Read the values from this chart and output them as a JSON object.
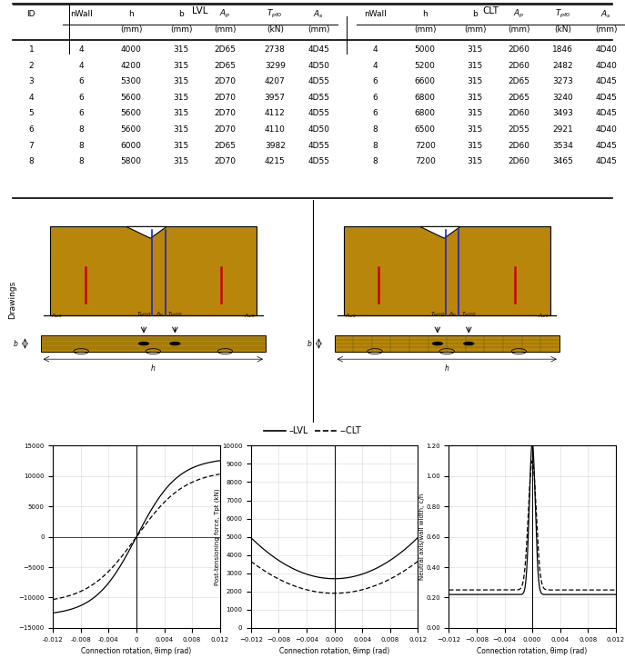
{
  "table_data": [
    [
      1,
      4,
      4000,
      315,
      "2D65",
      2738,
      "4D45",
      4,
      5000,
      315,
      "2D60",
      1846,
      "4D40"
    ],
    [
      2,
      4,
      4200,
      315,
      "2D65",
      3299,
      "4D50",
      4,
      5200,
      315,
      "2D60",
      2482,
      "4D40"
    ],
    [
      3,
      6,
      5300,
      315,
      "2D70",
      4207,
      "4D55",
      6,
      6600,
      315,
      "2D65",
      3273,
      "4D45"
    ],
    [
      4,
      6,
      5600,
      315,
      "2D70",
      3957,
      "4D55",
      6,
      6800,
      315,
      "2D65",
      3240,
      "4D45"
    ],
    [
      5,
      6,
      5600,
      315,
      "2D70",
      4112,
      "4D55",
      6,
      6800,
      315,
      "2D60",
      3493,
      "4D45"
    ],
    [
      6,
      8,
      5600,
      315,
      "2D70",
      4110,
      "4D50",
      8,
      6500,
      315,
      "2D55",
      2921,
      "4D40"
    ],
    [
      7,
      8,
      6000,
      315,
      "2D65",
      3982,
      "4D55",
      8,
      7200,
      315,
      "2D60",
      3534,
      "4D45"
    ],
    [
      8,
      8,
      5800,
      315,
      "2D70",
      4215,
      "4D55",
      8,
      7200,
      315,
      "2D60",
      3465,
      "4D45"
    ]
  ],
  "wood_color": "#B8860B",
  "bg_color": "#FFFFFF",
  "col_labels": [
    "nWall",
    "h",
    "b",
    "A_p",
    "T_pt0",
    "A_s"
  ],
  "col_units": [
    "",
    "(mm)",
    "(mm)",
    "(mm)",
    "(kN)",
    "(mm)"
  ],
  "col_labels_math": [
    "nWall",
    "h",
    "b",
    "$A_p$",
    "$T_{pt0}$",
    "$A_s$"
  ],
  "groups": [
    "LVL",
    "CLT"
  ],
  "plot_a_ylabel": "",
  "plot_b_ylabel": "Post-tensioning force, Tpt (kN)",
  "plot_c_ylabel": "Neutral axis/wall width, c/h",
  "xlabel": "Connection rotation, θimp (rad)",
  "legend_lvl": "–LVL",
  "legend_clt": "--CLT",
  "yticks_a": [
    -15000,
    -10000,
    -5000,
    0,
    5000,
    10000,
    15000
  ],
  "yticks_b": [
    0,
    1000,
    2000,
    3000,
    4000,
    5000,
    6000,
    7000,
    8000,
    9000,
    10000
  ],
  "yticks_c": [
    0.0,
    0.2,
    0.4,
    0.6,
    0.8,
    1.0,
    1.2
  ],
  "xticks": [
    -0.012,
    -0.008,
    -0.004,
    0,
    0.004,
    0.008,
    0.012
  ]
}
